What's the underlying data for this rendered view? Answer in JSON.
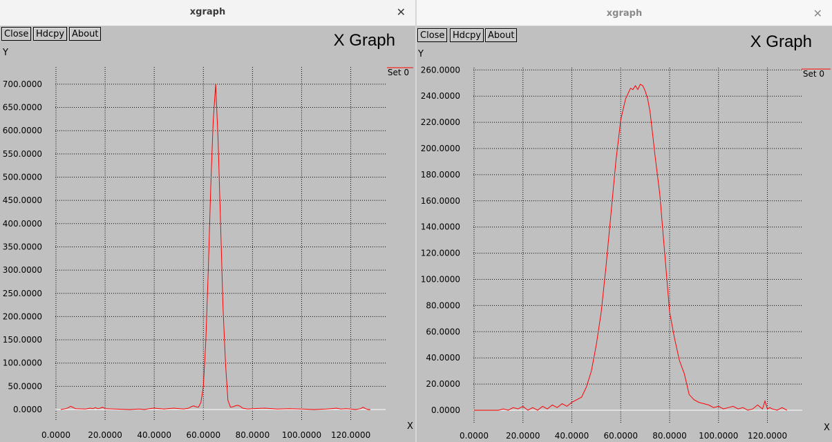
{
  "windows": [
    {
      "title": "xgraph",
      "buttons": [
        "Close",
        "Hdcpy",
        "About"
      ],
      "graph_title": "X Graph",
      "x_axis_label": "X",
      "y_axis_label": "Y",
      "legend": "Set 0",
      "line_color": "#ff0000"
    },
    {
      "title": "xgraph",
      "buttons": [
        "Close",
        "Hdcpy",
        "About"
      ],
      "graph_title": "X Graph",
      "x_axis_label": "X",
      "y_axis_label": "Y",
      "legend": "Set 0",
      "line_color": "#ff0000"
    }
  ],
  "chart_data": [
    {
      "type": "line",
      "title": "X Graph",
      "xlabel": "X",
      "ylabel": "Y",
      "grid": true,
      "legend_position": "top-right",
      "xlim": [
        -2,
        132
      ],
      "ylim": [
        -10,
        710
      ],
      "x_ticks": [
        "0.0000",
        "20.0000",
        "40.0000",
        "60.0000",
        "80.0000",
        "100.0000",
        "120.0000"
      ],
      "y_ticks": [
        "0.0000",
        "50.0000",
        "100.0000",
        "150.0000",
        "200.0000",
        "250.0000",
        "300.0000",
        "350.0000",
        "400.0000",
        "450.0000",
        "500.0000",
        "550.0000",
        "600.0000",
        "650.0000",
        "700.0000"
      ],
      "series": [
        {
          "name": "Set 0",
          "x": [
            2,
            4,
            5,
            6,
            8,
            12,
            14,
            15,
            16,
            17,
            18,
            19,
            20,
            24,
            30,
            34,
            36,
            38,
            40,
            44,
            48,
            52,
            54,
            55,
            56,
            57,
            58,
            59,
            60,
            61,
            62,
            63,
            64,
            65,
            66,
            67,
            68,
            69,
            70,
            71,
            72,
            73,
            74,
            75,
            76,
            78,
            80,
            85,
            90,
            95,
            100,
            105,
            110,
            112,
            114,
            116,
            118,
            120,
            122,
            124,
            125,
            126,
            127,
            128
          ],
          "y": [
            0,
            2,
            4,
            7,
            2,
            1,
            3,
            2,
            4,
            2,
            3,
            5,
            2,
            1,
            0,
            1,
            0,
            2,
            3,
            1,
            3,
            1,
            3,
            6,
            8,
            6,
            5,
            15,
            50,
            150,
            300,
            480,
            620,
            700,
            580,
            400,
            220,
            100,
            20,
            5,
            6,
            8,
            9,
            7,
            3,
            1,
            2,
            3,
            1,
            2,
            1,
            0,
            1,
            2,
            3,
            1,
            2,
            1,
            0,
            2,
            5,
            2,
            0,
            0
          ]
        }
      ]
    },
    {
      "type": "line",
      "title": "X Graph",
      "xlabel": "X",
      "ylabel": "Y",
      "grid": true,
      "legend_position": "top-right",
      "xlim": [
        -4,
        131
      ],
      "ylim": [
        -3,
        258
      ],
      "x_ticks": [
        "0.0000",
        "20.0000",
        "40.0000",
        "60.0000",
        "80.0000",
        "100.0000",
        "120.0000"
      ],
      "y_ticks": [
        "0.0000",
        "20.0000",
        "40.0000",
        "60.0000",
        "80.0000",
        "100.0000",
        "120.0000",
        "140.0000",
        "160.0000",
        "180.0000",
        "200.0000",
        "220.0000",
        "240.0000",
        "260.0000"
      ],
      "series": [
        {
          "name": "Set 0",
          "x": [
            0,
            5,
            10,
            12,
            14,
            16,
            18,
            20,
            22,
            24,
            26,
            28,
            30,
            32,
            34,
            36,
            38,
            40,
            42,
            44,
            46,
            48,
            50,
            52,
            54,
            56,
            58,
            60,
            62,
            64,
            65,
            66,
            67,
            68,
            69,
            70,
            71,
            72,
            73,
            74,
            76,
            78,
            80,
            82,
            84,
            86,
            88,
            90,
            92,
            94,
            96,
            98,
            100,
            102,
            104,
            106,
            108,
            110,
            112,
            114,
            116,
            118,
            119,
            120,
            121,
            122,
            124,
            126,
            128
          ],
          "y": [
            0,
            0,
            0,
            1,
            0,
            2,
            1,
            3,
            0,
            2,
            0,
            3,
            1,
            4,
            2,
            5,
            3,
            6,
            8,
            10,
            18,
            30,
            50,
            75,
            110,
            150,
            190,
            222,
            238,
            246,
            245,
            248,
            245,
            249,
            248,
            244,
            238,
            228,
            212,
            195,
            165,
            120,
            75,
            55,
            38,
            28,
            12,
            8,
            6,
            5,
            4,
            2,
            3,
            1,
            2,
            3,
            1,
            2,
            0,
            1,
            4,
            1,
            7,
            1,
            2,
            1,
            0,
            2,
            0
          ]
        }
      ]
    }
  ]
}
